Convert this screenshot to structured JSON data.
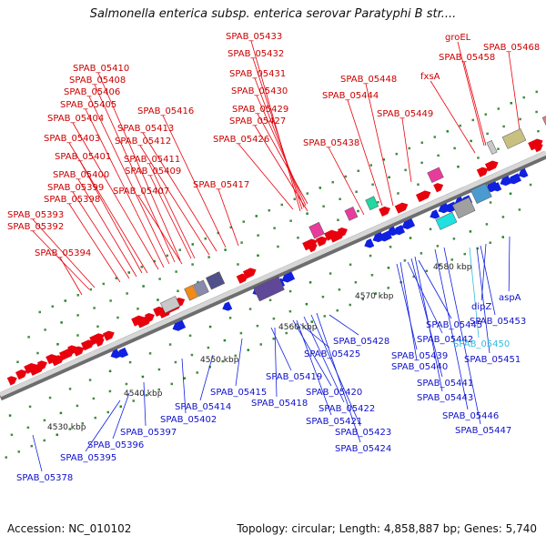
{
  "title": "Salmonella enterica subsp. enterica serovar Paratyphi B str....",
  "footer": {
    "accession": "Accession: NC_010102",
    "summary": "Topology: circular; Length: 4,858,887 bp; Genes: 5,740"
  },
  "colors": {
    "forward_gene": "#e8000c",
    "reverse_gene": "#1020e0",
    "forward_label": "#cc0000",
    "reverse_label": "#1010cc",
    "highlight_label": "#33bbdd",
    "backbone": "#9a9a9a",
    "orf_tick": "#228822"
  },
  "scale_labels": [
    "4530 kbp",
    "4540 kbp",
    "4550 kbp",
    "4560 kbp",
    "4570 kbp",
    "4580 kbp"
  ],
  "forward_genes": [
    "SPAB_05433",
    "SPAB_05432",
    "SPAB_05431",
    "SPAB_05430",
    "SPAB_05429",
    "SPAB_05427",
    "SPAB_05426",
    "groEL",
    "SPAB_05468",
    "SPAB_05458",
    "fxsA",
    "SPAB_05448",
    "SPAB_05444",
    "SPAB_05449",
    "SPAB_05438",
    "SPAB_05410",
    "SPAB_05408",
    "SPAB_05406",
    "SPAB_05405",
    "SPAB_05404",
    "SPAB_05416",
    "SPAB_05413",
    "SPAB_05403",
    "SPAB_05412",
    "SPAB_05401",
    "SPAB_05411",
    "SPAB_05409",
    "SPAB_05400",
    "SPAB_05399",
    "SPAB_05407",
    "SPAB_05417",
    "SPAB_05398",
    "SPAB_05393",
    "SPAB_05392",
    "SPAB_05394"
  ],
  "reverse_genes": [
    "SPAB_05378",
    "SPAB_05395",
    "SPAB_05396",
    "SPAB_05397",
    "SPAB_05402",
    "SPAB_05414",
    "SPAB_05415",
    "SPAB_05418",
    "SPAB_05419",
    "SPAB_05420",
    "SPAB_05421",
    "SPAB_05422",
    "SPAB_05423",
    "SPAB_05424",
    "SPAB_05425",
    "SPAB_05428",
    "SPAB_05439",
    "SPAB_05440",
    "SPAB_05441",
    "SPAB_05442",
    "SPAB_05443",
    "SPAB_05445",
    "SPAB_05446",
    "SPAB_05447",
    "SPAB_05450",
    "SPAB_05451",
    "SPAB_05453",
    "dipZ",
    "aspA"
  ],
  "highlighted_gene": "SPAB_05450"
}
